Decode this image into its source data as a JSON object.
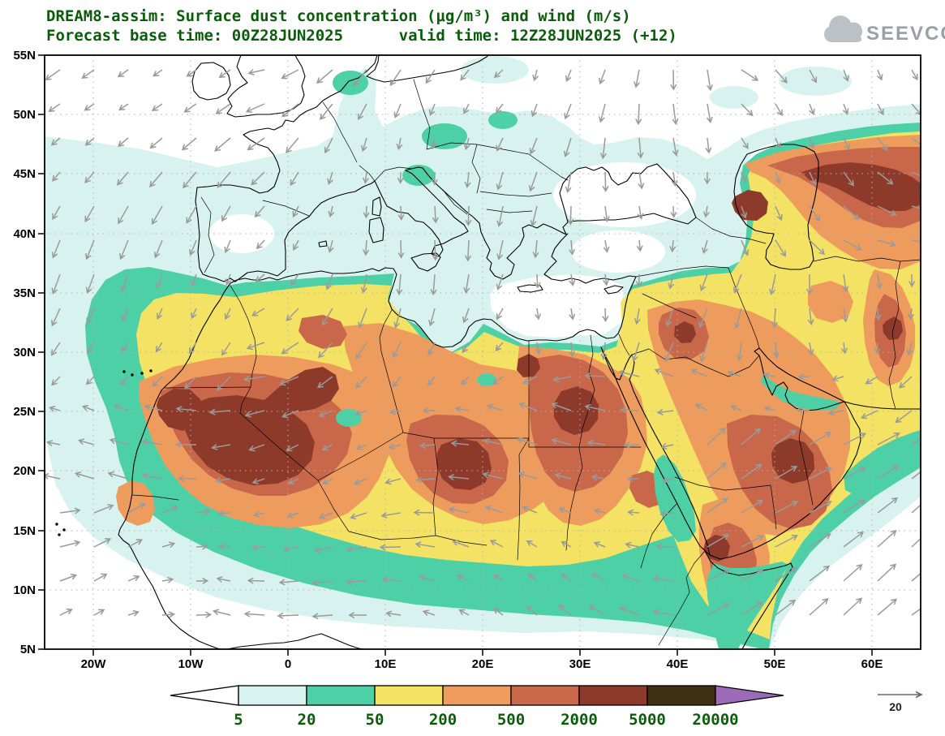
{
  "header": {
    "title_line1": "DREAM8-assim: Surface dust concentration (μg/m³) and wind (m/s)",
    "title_line2": "Forecast base time: 00Z28JUN2025      valid time: 12Z28JUN2025 (+12)",
    "logo_text": "SEEVCCC"
  },
  "chart_data": {
    "type": "heatmap",
    "title": "DREAM8-assim: Surface dust concentration (μg/m³) and wind (m/s)",
    "model": "DREAM8-assim",
    "variables": [
      "surface dust concentration (μg/m³)",
      "wind (m/s)"
    ],
    "forecast_base_time": "00Z28JUN2025",
    "valid_time": "12Z28JUN2025",
    "forecast_hour": "+12",
    "lat_ticks": [
      "55N",
      "50N",
      "45N",
      "40N",
      "35N",
      "30N",
      "25N",
      "20N",
      "15N",
      "10N",
      "5N"
    ],
    "lon_ticks": [
      "20W",
      "10W",
      "0",
      "10E",
      "20E",
      "30E",
      "40E",
      "50E",
      "60E"
    ],
    "colorbar": {
      "units": "μg/m³",
      "levels": [
        "5",
        "20",
        "50",
        "200",
        "500",
        "2000",
        "5000",
        "20000"
      ],
      "colors": [
        "#ffffff",
        "#d8f3ef",
        "#4ed0a6",
        "#f3e264",
        "#ee9c5d",
        "#c9674b",
        "#8e3a2b",
        "#3f3014",
        "#9b6ab8"
      ]
    },
    "wind_reference": {
      "value": "20",
      "units": "m/s"
    }
  }
}
